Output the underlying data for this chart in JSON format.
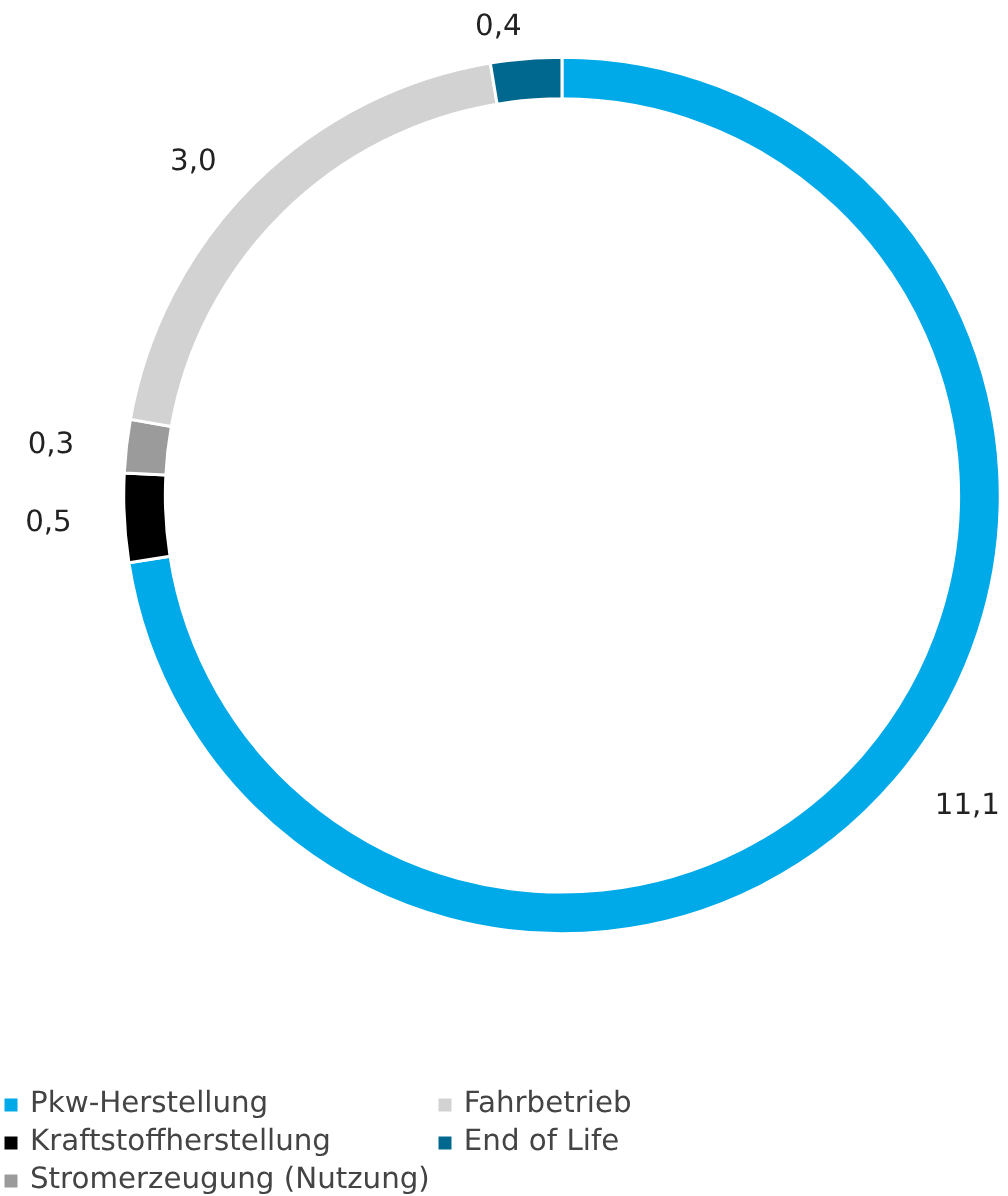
{
  "chart_data": {
    "type": "donut",
    "categories": [
      "Pkw-Herstellung",
      "Kraftstoffherstellung",
      "Stromerzeugung (Nutzung)",
      "Fahrbetrieb",
      "End of Life"
    ],
    "values": [
      11.1,
      0.5,
      0.3,
      3.0,
      0.4
    ],
    "colors": [
      "#00a9e7",
      "#000000",
      "#9b9b9b",
      "#d2d2d2",
      "#00688f"
    ],
    "value_labels": [
      "11,1",
      "0,5",
      "0,3",
      "3,0",
      "0,4"
    ],
    "legend": "bottom"
  }
}
